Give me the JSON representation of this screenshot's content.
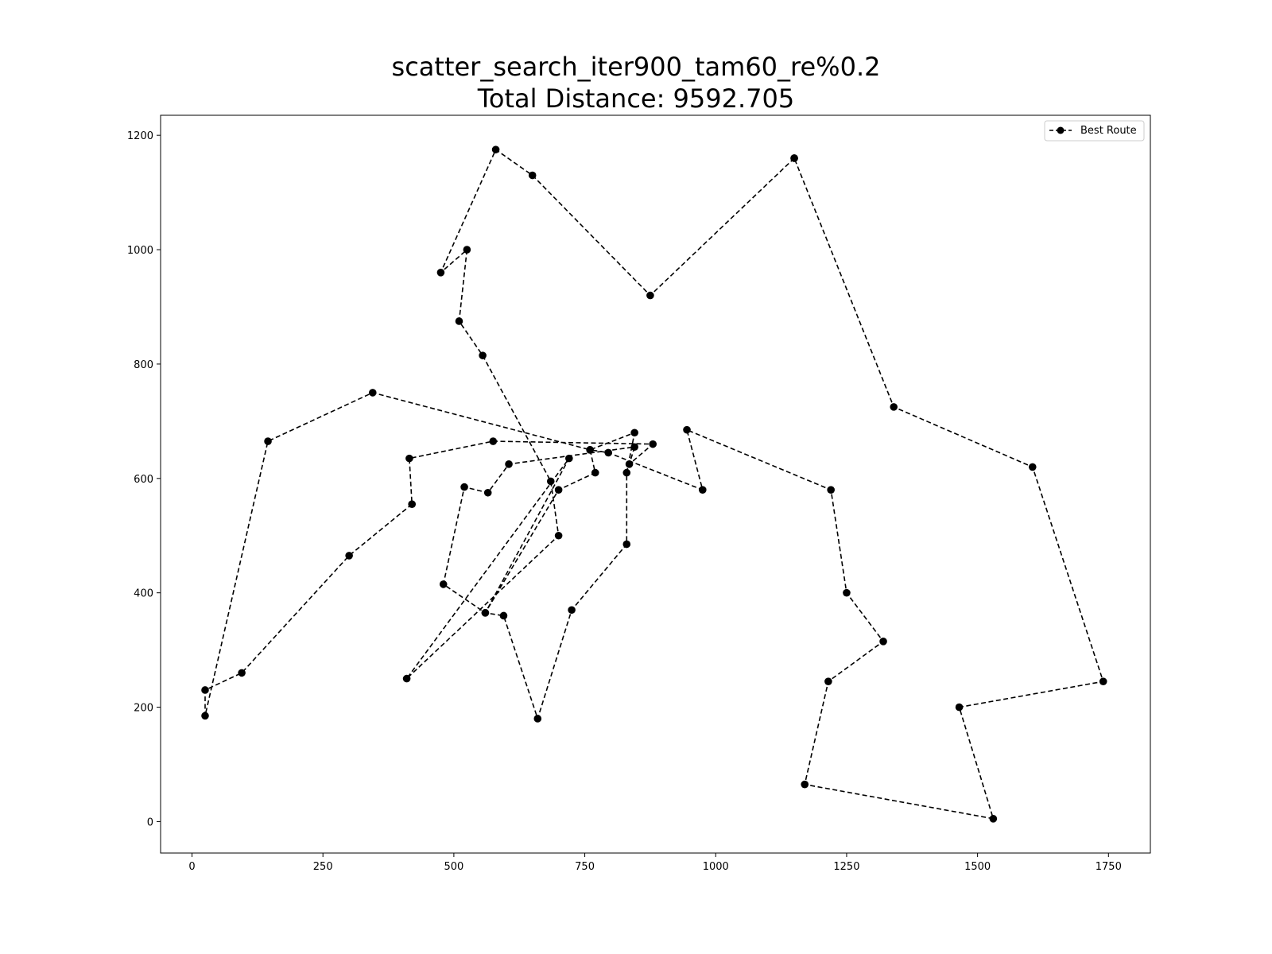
{
  "chart_data": {
    "type": "line",
    "title": "scatter_search_iter900_tam60_re%0.2",
    "subtitle": "Total Distance: 9592.705",
    "xlabel": "",
    "ylabel": "",
    "xlim": [
      -60,
      1830
    ],
    "ylim": [
      -55,
      1235
    ],
    "x_ticks": [
      0,
      250,
      500,
      750,
      1000,
      1250,
      1500,
      1750
    ],
    "y_ticks": [
      0,
      200,
      400,
      600,
      800,
      1000,
      1200
    ],
    "x_tick_labels": [
      "0",
      "250",
      "500",
      "750",
      "1000",
      "1250",
      "1500",
      "1750"
    ],
    "y_tick_labels": [
      "0",
      "200",
      "400",
      "600",
      "800",
      "1000",
      "1200"
    ],
    "grid": false,
    "legend": {
      "position": "top-right",
      "entries": [
        "Best Route"
      ]
    },
    "series": [
      {
        "name": "Best Route",
        "color": "#000000",
        "line_style": "dashed",
        "marker": "circle",
        "points": [
          [
            1150,
            1160
          ],
          [
            875,
            920
          ],
          [
            650,
            1130
          ],
          [
            580,
            1175
          ],
          [
            475,
            960
          ],
          [
            525,
            1000
          ],
          [
            510,
            875
          ],
          [
            555,
            815
          ],
          [
            685,
            595
          ],
          [
            700,
            500
          ],
          [
            410,
            250
          ],
          [
            720,
            635
          ],
          [
            560,
            365
          ],
          [
            595,
            360
          ],
          [
            660,
            180
          ],
          [
            725,
            370
          ],
          [
            830,
            485
          ],
          [
            830,
            610
          ],
          [
            845,
            680
          ],
          [
            760,
            650
          ],
          [
            345,
            750
          ],
          [
            145,
            665
          ],
          [
            25,
            185
          ],
          [
            25,
            230
          ],
          [
            95,
            260
          ],
          [
            300,
            465
          ],
          [
            420,
            555
          ],
          [
            415,
            635
          ],
          [
            575,
            665
          ],
          [
            880,
            660
          ],
          [
            835,
            625
          ],
          [
            845,
            655
          ],
          [
            605,
            625
          ],
          [
            565,
            575
          ],
          [
            520,
            585
          ],
          [
            480,
            415
          ],
          [
            560,
            365
          ],
          [
            700,
            580
          ],
          [
            770,
            610
          ],
          [
            760,
            650
          ],
          [
            795,
            645
          ],
          [
            975,
            580
          ],
          [
            945,
            685
          ],
          [
            1220,
            580
          ],
          [
            1250,
            400
          ],
          [
            1320,
            315
          ],
          [
            1215,
            245
          ],
          [
            1170,
            65
          ],
          [
            1530,
            5
          ],
          [
            1465,
            200
          ],
          [
            1740,
            245
          ],
          [
            1605,
            620
          ],
          [
            1340,
            725
          ],
          [
            1150,
            1160
          ]
        ]
      }
    ]
  }
}
